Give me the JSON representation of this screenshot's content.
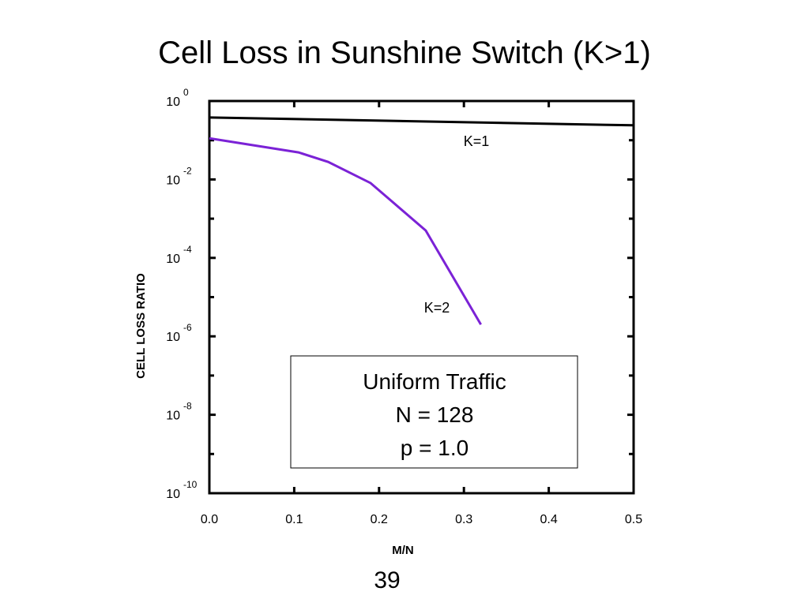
{
  "chart_data": {
    "type": "line",
    "title": "Cell Loss in Sunshine Switch (K>1)",
    "xlabel": "M/N",
    "ylabel": "CELL LOSS RATIO",
    "log_y": true,
    "xlim": [
      0,
      0.5
    ],
    "ylim": [
      1e-10,
      1
    ],
    "xticks": [
      {
        "value": 0,
        "label": "0.0"
      },
      0.1,
      0.2,
      0.3,
      0.4,
      0.5
    ],
    "yticks": [
      {
        "value": 1,
        "label": "10",
        "exponent": "0"
      },
      {
        "value": 0.01,
        "label": "10",
        "exponent": "-2"
      },
      {
        "value": 0.0001,
        "label": "10",
        "exponent": "-4"
      },
      {
        "value": 1e-06,
        "label": "10",
        "exponent": "-6"
      },
      {
        "value": 1e-08,
        "label": "10",
        "exponent": "-8"
      },
      {
        "value": 1e-10,
        "label": "10",
        "exponent": "-10"
      }
    ],
    "yminorticks": [
      0.1,
      0.001,
      1e-05,
      1e-07,
      1e-09
    ],
    "series": [
      {
        "name": "K=1",
        "color": "#000000",
        "x": [
          0,
          0.5
        ],
        "values": [
          0.38,
          0.24
        ]
      },
      {
        "name": "K=2",
        "color": "#7b22d6",
        "x": [
          0,
          0.105,
          0.14,
          0.19,
          0.255,
          0.32
        ],
        "values": [
          0.112,
          0.049,
          0.028,
          0.0081,
          0.0005,
          2e-06
        ]
      }
    ],
    "annotations": [
      "Uniform Traffic",
      "N = 128",
      "p = 1.0"
    ]
  },
  "page_number": "39"
}
